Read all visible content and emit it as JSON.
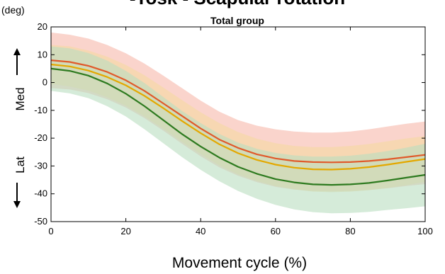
{
  "chart_data": {
    "type": "line",
    "title": "-Tosk - Scapular rotation",
    "subtitle": "Total group",
    "unit_label": "(deg)",
    "xlabel": "Movement cycle (%)",
    "ylabel_top": "Med",
    "ylabel_bottom": "Lat",
    "xlim": [
      0,
      100
    ],
    "ylim": [
      -50,
      20
    ],
    "xticks": [
      0,
      20,
      40,
      60,
      80,
      100
    ],
    "yticks": [
      20,
      10,
      0,
      -10,
      -20,
      -30,
      -40,
      -50
    ],
    "grid": false,
    "x": [
      0,
      5,
      10,
      15,
      20,
      25,
      30,
      35,
      40,
      45,
      50,
      55,
      60,
      65,
      70,
      75,
      80,
      85,
      90,
      95,
      100
    ],
    "series": [
      {
        "color": "#e05a2b",
        "band_color": "#f7b8aa",
        "values": [
          8,
          7.4,
          6,
          3.8,
          0.8,
          -3,
          -7.5,
          -12,
          -16.5,
          -20.5,
          -23.5,
          -25.8,
          -27.3,
          -28.2,
          -28.6,
          -28.7,
          -28.6,
          -28.2,
          -27.6,
          -26.8,
          -26
        ],
        "upper": [
          18,
          17.2,
          15.8,
          13.5,
          10.5,
          6.8,
          2.5,
          -2,
          -6.5,
          -10.5,
          -13.5,
          -15.5,
          -16.8,
          -17.6,
          -18,
          -18,
          -17.6,
          -16.8,
          -15.8,
          -14.8,
          -14
        ],
        "lower": [
          -2,
          -2.5,
          -3.8,
          -6,
          -9,
          -12.8,
          -17.3,
          -22,
          -26.5,
          -30.5,
          -33.5,
          -35.8,
          -37.5,
          -38.5,
          -39,
          -39.1,
          -39,
          -38.6,
          -38,
          -37.2,
          -36.5
        ]
      },
      {
        "color": "#e3a800",
        "band_color": "#f5d9a0",
        "values": [
          6.5,
          5.8,
          4.3,
          2,
          -1,
          -4.8,
          -9.2,
          -13.8,
          -18.2,
          -22.2,
          -25.4,
          -27.8,
          -29.5,
          -30.6,
          -31.2,
          -31.3,
          -31,
          -30.4,
          -29.5,
          -28.5,
          -27.5
        ],
        "upper": [
          13.5,
          13,
          11.5,
          9.3,
          6.3,
          2.6,
          -1.8,
          -6.3,
          -10.7,
          -14.6,
          -17.8,
          -20.2,
          -21.8,
          -22.8,
          -23.2,
          -23.2,
          -22.8,
          -22.1,
          -21.1,
          -20.1,
          -19.3
        ],
        "lower": [
          -0.5,
          -1.4,
          -2.9,
          -5.3,
          -8.3,
          -12.2,
          -16.6,
          -21.3,
          -25.7,
          -29.8,
          -33,
          -35.4,
          -37.2,
          -38.4,
          -39.2,
          -39.4,
          -39.2,
          -38.7,
          -37.9,
          -36.9,
          -35.7
        ]
      },
      {
        "color": "#2d7a1f",
        "band_color": "#b9dec0",
        "values": [
          5,
          4.2,
          2.5,
          -0.3,
          -4,
          -8.5,
          -13.5,
          -18.5,
          -23,
          -27,
          -30.3,
          -32.8,
          -34.7,
          -35.9,
          -36.6,
          -36.8,
          -36.6,
          -36.1,
          -35.2,
          -34.2,
          -33.2
        ],
        "upper": [
          13,
          12.3,
          10.6,
          7.9,
          4.2,
          -0.2,
          -5.2,
          -10.2,
          -14.6,
          -18.5,
          -21.6,
          -23.8,
          -25.3,
          -26.2,
          -26.6,
          -26.6,
          -26.3,
          -25.6,
          -24.6,
          -23.4,
          -22
        ],
        "lower": [
          -3,
          -3.9,
          -5.6,
          -8.5,
          -12.2,
          -16.8,
          -21.8,
          -26.8,
          -31.4,
          -35.5,
          -39,
          -41.8,
          -44,
          -45.6,
          -46.6,
          -47,
          -46.9,
          -46.5,
          -45.8,
          -45.2,
          -44.5
        ]
      }
    ]
  }
}
